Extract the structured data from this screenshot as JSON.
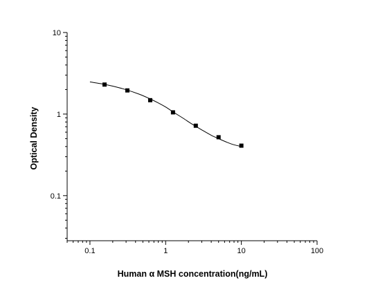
{
  "chart_data": {
    "type": "scatter",
    "xlabel": "Human α MSH concentration(ng/mL)",
    "ylabel": "Optical Density",
    "x_scale": "log",
    "y_scale": "log",
    "xlim": [
      0.05,
      100
    ],
    "ylim": [
      0.028,
      10
    ],
    "x_ticks": [
      0.1,
      1,
      10,
      100
    ],
    "x_tick_labels": [
      "0.1",
      "1",
      "10",
      "100"
    ],
    "y_ticks": [
      0.1,
      1,
      10
    ],
    "y_tick_labels": [
      "0.1",
      "1",
      "10"
    ],
    "grid": false,
    "series": [
      {
        "points": [
          {
            "x": 0.156,
            "y": 2.3
          },
          {
            "x": 0.312,
            "y": 1.95
          },
          {
            "x": 0.625,
            "y": 1.48
          },
          {
            "x": 1.25,
            "y": 1.05
          },
          {
            "x": 2.5,
            "y": 0.72
          },
          {
            "x": 5,
            "y": 0.52
          },
          {
            "x": 10,
            "y": 0.41
          }
        ],
        "fit_curve": {
          "x": [
            0.1,
            0.15,
            0.2,
            0.3,
            0.45,
            0.6,
            0.8,
            1.0,
            1.3,
            1.7,
            2.2,
            3.0,
            4.0,
            5.0,
            6.5,
            8.0,
            10.0
          ],
          "y": [
            2.48,
            2.33,
            2.2,
            1.99,
            1.75,
            1.56,
            1.37,
            1.22,
            1.04,
            0.89,
            0.76,
            0.64,
            0.55,
            0.5,
            0.45,
            0.42,
            0.4
          ]
        }
      }
    ]
  }
}
